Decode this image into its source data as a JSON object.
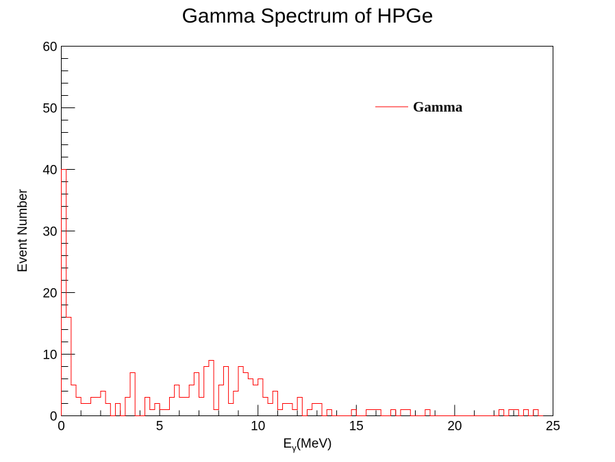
{
  "chart_data": {
    "type": "bar",
    "title": "Gamma Spectrum of HPGe",
    "xlabel": {
      "main": "E",
      "sub": "γ",
      "unit": "(MeV)"
    },
    "ylabel": "Event Number",
    "xlim": [
      0,
      25
    ],
    "ylim": [
      0,
      60
    ],
    "x_ticks": [
      0,
      5,
      10,
      15,
      20,
      25
    ],
    "y_ticks": [
      0,
      10,
      20,
      30,
      40,
      50,
      60
    ],
    "bin_width": 0.25,
    "grid": false,
    "legend_position": "top-right",
    "series": [
      {
        "name": "Gamma",
        "color": "#ff0000",
        "values": [
          40,
          16,
          5,
          3,
          2,
          2,
          3,
          3,
          4,
          2,
          0,
          2,
          0,
          3,
          7,
          0,
          0,
          3,
          1,
          2,
          1,
          1,
          3,
          5,
          3,
          3,
          5,
          7,
          3,
          8,
          9,
          1,
          5,
          8,
          2,
          4,
          8,
          7,
          6,
          5,
          6,
          3,
          2,
          4,
          1,
          2,
          2,
          1,
          3,
          0,
          1,
          2,
          2,
          0,
          1,
          0,
          0,
          0,
          0,
          1,
          0,
          0,
          1,
          1,
          1,
          0,
          0,
          1,
          0,
          1,
          1,
          0,
          0,
          0,
          1,
          0,
          0,
          0,
          0,
          0,
          0,
          0,
          0,
          0,
          0,
          0,
          0,
          0,
          0,
          1,
          0,
          1,
          1,
          0,
          1,
          0,
          1,
          0
        ]
      }
    ]
  }
}
